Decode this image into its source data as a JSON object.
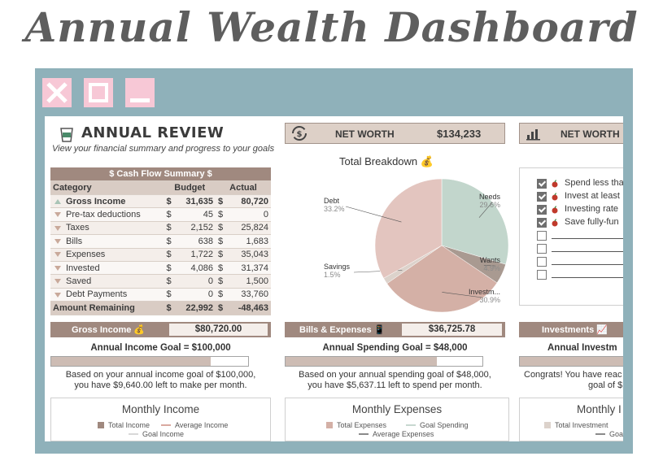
{
  "hero_title": "Annual Wealth Dashboard",
  "header": {
    "title": "ANNUAL REVIEW",
    "subtitle": "View your financial summary and progress to your goals"
  },
  "cash_flow": {
    "title": "$ Cash Flow Summary $",
    "columns": [
      "Category",
      "Budget",
      "Actual"
    ],
    "rows": [
      {
        "label": "Gross Income",
        "dir": "up",
        "budget": "31,635",
        "actual": "80,720",
        "bold": true
      },
      {
        "label": "Pre-tax deductions",
        "dir": "down",
        "budget": "45",
        "actual": "0"
      },
      {
        "label": "Taxes",
        "dir": "down",
        "budget": "2,152",
        "actual": "25,824"
      },
      {
        "label": "Bills",
        "dir": "down",
        "budget": "638",
        "actual": "1,683"
      },
      {
        "label": "Expenses",
        "dir": "down",
        "budget": "1,722",
        "actual": "35,043"
      },
      {
        "label": "Invested",
        "dir": "down",
        "budget": "4,086",
        "actual": "31,374"
      },
      {
        "label": "Saved",
        "dir": "down",
        "budget": "0",
        "actual": "1,500"
      },
      {
        "label": "Debt Payments",
        "dir": "down",
        "budget": "0",
        "actual": "33,760"
      }
    ],
    "currency": "$",
    "total": {
      "label": "Amount Remaining",
      "budget": "22,992",
      "actual": "-48,463"
    }
  },
  "net_worth": {
    "label": "NET WORTH",
    "value": "$134,233",
    "label2": "NET WORTH"
  },
  "chart_data": {
    "type": "pie",
    "title": "Total Breakdown 💰",
    "slices": [
      {
        "name": "Needs",
        "value": 29.6,
        "pct": "29.6%",
        "color": "#c2d6cc"
      },
      {
        "name": "Wants",
        "value": 4.9,
        "pct": "4.9%",
        "color": "#a99a91"
      },
      {
        "name": "Investm...",
        "value": 30.9,
        "pct": "30.9%",
        "color": "#d4b0a6"
      },
      {
        "name": "Savings",
        "value": 1.5,
        "pct": "1.5%",
        "color": "#dcd2cb"
      },
      {
        "name": "Debt",
        "value": 33.2,
        "pct": "33.2%",
        "color": "#e3c5bf"
      }
    ]
  },
  "goals": [
    {
      "text": "Spend less tha",
      "checked": true
    },
    {
      "text": "Invest at least",
      "checked": true
    },
    {
      "text": "Investing rate",
      "checked": true
    },
    {
      "text": "Save fully-fun",
      "checked": true
    },
    {
      "text": "",
      "checked": false
    },
    {
      "text": "",
      "checked": false
    },
    {
      "text": "",
      "checked": false
    },
    {
      "text": "",
      "checked": false
    }
  ],
  "income_panel": {
    "label": "Gross Income 💰",
    "value": "$80,720.00",
    "goal_title": "Annual Income Goal = $100,000",
    "progress": 0.81,
    "note_1": "Based on your annual income goal of $100,000,",
    "note_2": "you have $9,640.00 left to make per month.",
    "chart_title": "Monthly Income",
    "legend": [
      "Total Income",
      "Average Income",
      "Goal Income"
    ]
  },
  "expense_panel": {
    "label": "Bills & Expenses 📱",
    "value": "$36,725.78",
    "goal_title": "Annual Spending Goal = $48,000",
    "progress": 0.77,
    "note_1": "Based on your annual spending goal of $48,000,",
    "note_2": "you have $5,637.11 left to spend per month.",
    "chart_title": "Monthly Expenses",
    "legend": [
      "Total Expenses",
      "Goal Spending",
      "Average Expenses"
    ]
  },
  "invest_panel": {
    "label": "Investments 📈",
    "goal_title": "Annual Investm",
    "progress": 1.0,
    "note_1": "Congrats! You have reac",
    "note_2": "goal of $",
    "chart_title": "Monthly I",
    "legend": [
      "Total Investment",
      "Goal"
    ]
  },
  "colors": {
    "frame": "#8fb1ba",
    "window_button": "#f7c8d6",
    "accent": "#a0897f",
    "header_fill": "#ddd0c7"
  },
  "icons": [
    "close-icon",
    "maximize-icon",
    "minimize-icon",
    "coffee-cup-icon",
    "refresh-dollar-icon",
    "bar-chart-icon",
    "money-bag-icon",
    "apple-icon"
  ]
}
